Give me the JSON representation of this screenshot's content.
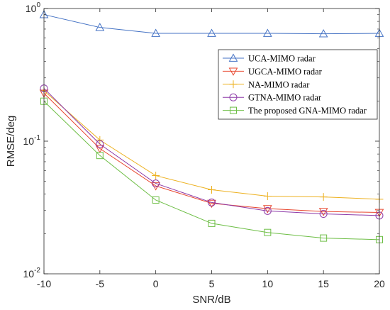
{
  "chart_data": {
    "type": "line",
    "xlabel": "SNR/dB",
    "ylabel": "RMSE/deg",
    "xlim": [
      -10,
      20
    ],
    "ylim": [
      0.01,
      1
    ],
    "y_scale": "log",
    "x_ticks": [
      -10,
      -5,
      0,
      5,
      10,
      15,
      20
    ],
    "y_ticks": [
      {
        "value": 0.01,
        "base": "10",
        "exp": "-2"
      },
      {
        "value": 0.1,
        "base": "10",
        "exp": "-1"
      },
      {
        "value": 1,
        "base": "10",
        "exp": "0"
      }
    ],
    "grid": false,
    "legend_position": "top-right",
    "x": [
      -10,
      -5,
      0,
      5,
      10,
      15,
      20
    ],
    "series": [
      {
        "name": "UCA-MIMO radar",
        "marker": "triangle-up",
        "color": "#4472C4",
        "values": [
          0.9,
          0.72,
          0.65,
          0.65,
          0.65,
          0.645,
          0.65
        ]
      },
      {
        "name": "UGCA-MIMO radar",
        "marker": "triangle-down",
        "color": "#E8472F",
        "values": [
          0.23,
          0.088,
          0.046,
          0.034,
          0.031,
          0.0295,
          0.029
        ]
      },
      {
        "name": "NA-MIMO radar",
        "marker": "plus",
        "color": "#EDB120",
        "values": [
          0.24,
          0.102,
          0.055,
          0.043,
          0.0385,
          0.038,
          0.0365
        ]
      },
      {
        "name": "GTNA-MIMO radar",
        "marker": "circle",
        "color": "#8E3BA8",
        "values": [
          0.25,
          0.095,
          0.048,
          0.0345,
          0.0298,
          0.0283,
          0.0275
        ]
      },
      {
        "name": "The proposed GNA-MIMO radar",
        "marker": "square",
        "color": "#6DBE45",
        "values": [
          0.2,
          0.078,
          0.036,
          0.024,
          0.0205,
          0.0186,
          0.0181
        ]
      }
    ]
  }
}
